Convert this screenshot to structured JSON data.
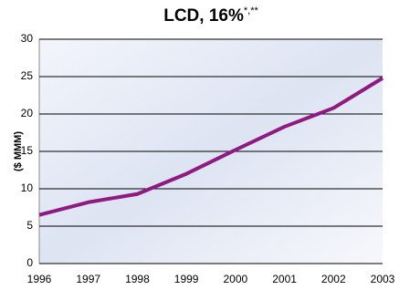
{
  "chart_data": {
    "type": "line",
    "title": "LCD, 16%",
    "title_superscript": "*,**",
    "y_label": "($ MMM)",
    "x": [
      1996,
      1997,
      1998,
      1999,
      2000,
      2001,
      2002,
      2003
    ],
    "series": [
      {
        "color": "#8e1a82",
        "values": [
          6.5,
          8.2,
          9.3,
          12,
          15.2,
          18.3,
          20.8,
          24.8
        ]
      }
    ],
    "xlim": [
      1996,
      2003
    ],
    "xticks": [
      1996,
      1997,
      1998,
      1999,
      2000,
      2001,
      2002,
      2003
    ],
    "ylim": [
      0,
      30
    ],
    "yticks": [
      0,
      5,
      10,
      15,
      20,
      25,
      30
    ],
    "grid": true
  }
}
